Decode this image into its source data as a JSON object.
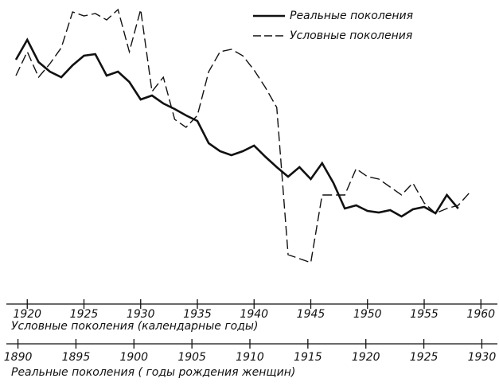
{
  "chart_data": {
    "type": "line",
    "x": [
      1919,
      1920,
      1921,
      1922,
      1923,
      1924,
      1925,
      1926,
      1927,
      1928,
      1929,
      1930,
      1931,
      1932,
      1933,
      1934,
      1935,
      1936,
      1937,
      1938,
      1939,
      1940,
      1941,
      1942,
      1943,
      1944,
      1945,
      1946,
      1947,
      1948,
      1949,
      1950,
      1951,
      1952,
      1953,
      1954,
      1955,
      1956,
      1957,
      1958,
      1959
    ],
    "series": [
      {
        "name": "Реальные поколения",
        "color": "#111111",
        "dash": false,
        "values": [
          265,
          290,
          262,
          250,
          243,
          258,
          270,
          272,
          245,
          250,
          237,
          215,
          220,
          210,
          203,
          195,
          188,
          160,
          150,
          145,
          150,
          157,
          143,
          130,
          118,
          130,
          115,
          135,
          110,
          78,
          82,
          75,
          73,
          76,
          68,
          77,
          80,
          72,
          95,
          78,
          null
        ]
      },
      {
        "name": "Условные поколения",
        "color": "#111111",
        "dash": true,
        "values": [
          245,
          275,
          243,
          260,
          280,
          325,
          320,
          323,
          315,
          328,
          275,
          328,
          225,
          243,
          190,
          180,
          195,
          250,
          275,
          278,
          270,
          252,
          230,
          205,
          20,
          15,
          10,
          95,
          95,
          95,
          128,
          118,
          115,
          105,
          95,
          110,
          85,
          72,
          78,
          82,
          98
        ]
      }
    ],
    "xlim": [
      1919,
      1959
    ],
    "ylim": [
      0,
      335
    ],
    "xticks": [
      1920,
      1925,
      1930,
      1935,
      1940,
      1945,
      1950,
      1955,
      1960
    ],
    "xlabel": "Условные поколения (календарные годы)",
    "x2lim": [
      1889,
      1931
    ],
    "x2ticks": [
      1890,
      1895,
      1900,
      1905,
      1910,
      1915,
      1920,
      1925,
      1930
    ],
    "x2label": "Реальные поколения ( годы рождения женщин)"
  }
}
